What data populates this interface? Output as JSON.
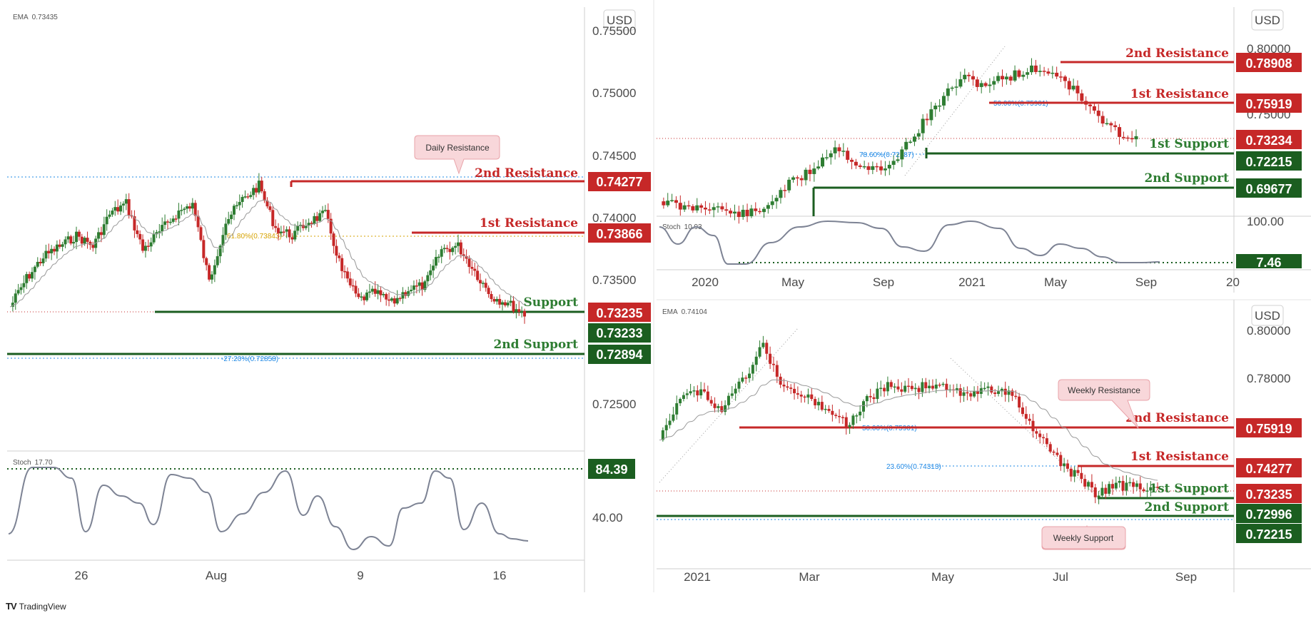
{
  "brand": {
    "logo_text": "TV",
    "name": "TradingView"
  },
  "colors": {
    "bull": "#2e7d32",
    "bear": "#c62828",
    "resistance": "#c62828",
    "support": "#1b5e20",
    "fib": "#1e88e5",
    "fib_gold": "#d6a200",
    "stoch": "#7d8394",
    "ema": "#9a9a9a"
  },
  "panels": {
    "daily": {
      "ema_label": "EMA",
      "ema_value": "0.73435",
      "currency": "USD",
      "price_ticks": [
        "0.75500",
        "0.75000",
        "0.74500",
        "0.74000",
        "0.73500",
        "0.72500"
      ],
      "time_ticks": [
        "26",
        "Aug",
        "9",
        "16"
      ],
      "callout": "Daily Resistance",
      "levels": [
        {
          "name": "2nd Resistance",
          "value": "0.74277",
          "kind": "resistance"
        },
        {
          "name": "1st Resistance",
          "value": "0.73866",
          "kind": "resistance"
        },
        {
          "name": "Support",
          "value": "0.73233",
          "kind": "support"
        },
        {
          "name": "2nd Support",
          "value": "0.72894",
          "kind": "support"
        }
      ],
      "fib_labels": [
        "61.80%(0.73843)",
        "-27.20%(0.72858)"
      ],
      "current_price": "0.73235",
      "stoch_label": "Stoch",
      "stoch_value": "17.70",
      "stoch_tick": "40.00",
      "stoch_level": "84.39"
    },
    "monthly": {
      "currency": "USD",
      "price_ticks": [
        "0.80000",
        "0.75000",
        "100.00"
      ],
      "time_ticks": [
        "2020",
        "May",
        "Sep",
        "2021",
        "May",
        "Sep",
        "20"
      ],
      "levels": [
        {
          "name": "2nd Resistance",
          "value": "0.78908",
          "kind": "resistance"
        },
        {
          "name": "1st Resistance",
          "value": "0.75919",
          "kind": "resistance"
        },
        {
          "name": "1st Support",
          "value": "0.72215",
          "kind": "support"
        },
        {
          "name": "2nd Support",
          "value": "0.69677",
          "kind": "support"
        }
      ],
      "fib_labels": [
        "50.00%(0.75901)",
        "78.60%(0.72187)"
      ],
      "current_price": "0.73234",
      "stoch_label": "Stoch",
      "stoch_value": "10.93",
      "stoch_level": "7.46"
    },
    "weekly": {
      "ema_label": "EMA",
      "ema_value": "0.74104",
      "currency": "USD",
      "price_ticks": [
        "0.80000",
        "0.78000"
      ],
      "time_ticks": [
        "2021",
        "Mar",
        "May",
        "Jul",
        "Sep"
      ],
      "callouts": [
        "Weekly Resistance",
        "Weekly Support"
      ],
      "levels": [
        {
          "name": "2nd Resistance",
          "value": "0.75919",
          "kind": "resistance"
        },
        {
          "name": "1st Resistance",
          "value": "0.74277",
          "kind": "resistance"
        },
        {
          "name": "1st Support",
          "value": "0.72996",
          "kind": "support"
        },
        {
          "name": "2nd Support",
          "value": "0.72215",
          "kind": "support"
        }
      ],
      "fib_labels": [
        "50.00%(0.75901)",
        "23.60%(0.74313)"
      ],
      "current_price": "0.73235"
    }
  },
  "chart_data": [
    {
      "type": "line",
      "title": "",
      "panel": "daily",
      "currency": "USD",
      "ema": 0.73435,
      "price_axis": [
        0.755,
        0.75,
        0.745,
        0.74,
        0.735,
        0.725
      ],
      "time_axis": [
        "26",
        "Aug",
        "9",
        "16"
      ],
      "series": [
        {
          "name": "2nd Resistance",
          "values": [
            0.74277
          ]
        },
        {
          "name": "1st Resistance",
          "values": [
            0.73866
          ]
        },
        {
          "name": "Support",
          "values": [
            0.73233
          ]
        },
        {
          "name": "2nd Support",
          "values": [
            0.72894
          ]
        }
      ],
      "last_price": 0.73235,
      "stoch": 17.7
    },
    {
      "type": "line",
      "title": "",
      "panel": "monthly",
      "currency": "USD",
      "price_axis": [
        0.8,
        0.75
      ],
      "time_axis": [
        "2020",
        "May",
        "Sep",
        "2021",
        "May",
        "Sep"
      ],
      "series": [
        {
          "name": "2nd Resistance",
          "values": [
            0.78908
          ]
        },
        {
          "name": "1st Resistance",
          "values": [
            0.75919
          ]
        },
        {
          "name": "1st Support",
          "values": [
            0.72215
          ]
        },
        {
          "name": "2nd Support",
          "values": [
            0.69677
          ]
        }
      ],
      "last_price": 0.73234,
      "stoch": 10.93
    },
    {
      "type": "line",
      "title": "",
      "panel": "weekly",
      "currency": "USD",
      "ema": 0.74104,
      "price_axis": [
        0.8,
        0.78
      ],
      "time_axis": [
        "2021",
        "Mar",
        "May",
        "Jul",
        "Sep"
      ],
      "series": [
        {
          "name": "2nd Resistance",
          "values": [
            0.75919
          ]
        },
        {
          "name": "1st Resistance",
          "values": [
            0.74277
          ]
        },
        {
          "name": "1st Support",
          "values": [
            0.72996
          ]
        },
        {
          "name": "2nd Support",
          "values": [
            0.72215
          ]
        }
      ],
      "last_price": 0.73235
    }
  ]
}
